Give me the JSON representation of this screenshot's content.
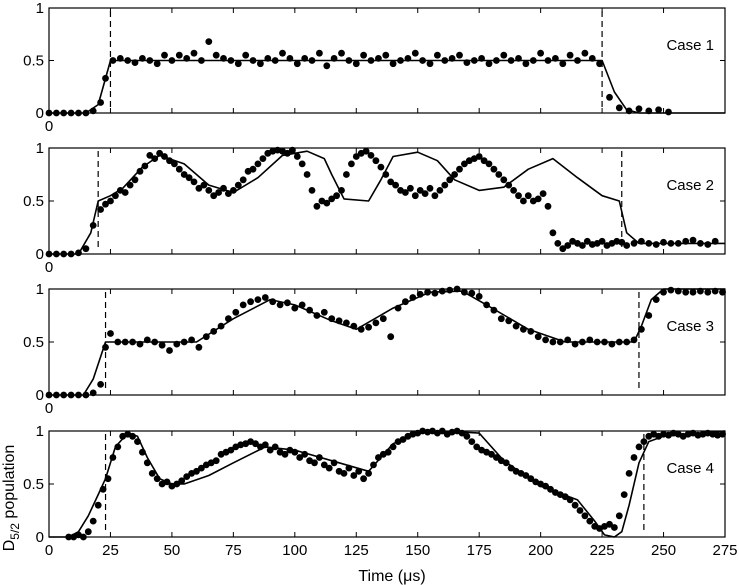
{
  "chart_data": [
    {
      "type": "scatter",
      "label": "Case 1",
      "xlim": [
        0,
        275
      ],
      "ylim": [
        0,
        1
      ],
      "yticks": [
        "0",
        "0.5",
        "1"
      ],
      "x_origin_label": "0",
      "transition_times": [
        25,
        225
      ],
      "fit_line": {
        "x": [
          0,
          15,
          20,
          25,
          225,
          230,
          235,
          240,
          275
        ],
        "y": [
          0,
          0,
          0.08,
          0.5,
          0.5,
          0.2,
          0.03,
          0,
          0
        ]
      },
      "points": {
        "x": [
          0,
          3,
          6,
          9,
          12,
          15,
          18,
          21,
          23,
          26,
          29,
          32,
          35,
          38,
          41,
          44,
          47,
          50,
          53,
          56,
          59,
          62,
          65,
          68,
          71,
          74,
          77,
          80,
          83,
          86,
          89,
          92,
          95,
          98,
          101,
          104,
          107,
          110,
          113,
          116,
          119,
          122,
          125,
          128,
          131,
          134,
          137,
          140,
          143,
          146,
          149,
          152,
          155,
          158,
          161,
          164,
          167,
          170,
          173,
          176,
          179,
          182,
          185,
          188,
          191,
          194,
          197,
          200,
          203,
          206,
          209,
          212,
          215,
          218,
          221,
          224,
          228,
          232,
          236,
          240,
          244,
          248,
          252
        ],
        "y": [
          0,
          0,
          0,
          0,
          0,
          0,
          0.02,
          0.1,
          0.33,
          0.5,
          0.52,
          0.5,
          0.48,
          0.52,
          0.5,
          0.47,
          0.55,
          0.5,
          0.55,
          0.52,
          0.57,
          0.5,
          0.68,
          0.55,
          0.52,
          0.5,
          0.47,
          0.55,
          0.5,
          0.47,
          0.52,
          0.5,
          0.57,
          0.52,
          0.47,
          0.52,
          0.5,
          0.57,
          0.45,
          0.52,
          0.57,
          0.5,
          0.47,
          0.55,
          0.5,
          0.52,
          0.55,
          0.47,
          0.5,
          0.52,
          0.57,
          0.5,
          0.47,
          0.55,
          0.5,
          0.52,
          0.55,
          0.48,
          0.5,
          0.52,
          0.47,
          0.5,
          0.55,
          0.5,
          0.52,
          0.47,
          0.5,
          0.57,
          0.5,
          0.52,
          0.47,
          0.55,
          0.5,
          0.57,
          0.52,
          0.47,
          0.15,
          0.05,
          0.02,
          0.04,
          0.02,
          0.03,
          0.01
        ]
      }
    },
    {
      "type": "scatter",
      "label": "Case 2",
      "xlim": [
        0,
        275
      ],
      "ylim": [
        0,
        1
      ],
      "yticks": [
        "0",
        "0.5",
        "1"
      ],
      "x_origin_label": "0",
      "transition_times": [
        20,
        233
      ],
      "fit_line": {
        "x": [
          0,
          12,
          17,
          20,
          25,
          30,
          38,
          45,
          55,
          65,
          75,
          85,
          95,
          105,
          112,
          115,
          120,
          130,
          135,
          140,
          150,
          158,
          165,
          175,
          185,
          195,
          205,
          215,
          225,
          232,
          235,
          240,
          275
        ],
        "y": [
          0,
          0,
          0.2,
          0.5,
          0.55,
          0.62,
          0.82,
          0.93,
          0.85,
          0.65,
          0.58,
          0.72,
          0.93,
          0.97,
          0.9,
          0.75,
          0.52,
          0.5,
          0.7,
          0.92,
          0.96,
          0.88,
          0.7,
          0.6,
          0.63,
          0.8,
          0.9,
          0.72,
          0.55,
          0.5,
          0.2,
          0.1,
          0.1
        ]
      },
      "points": {
        "x": [
          0,
          3,
          6,
          9,
          12,
          15,
          18,
          21,
          23,
          25,
          27,
          29,
          31,
          33,
          35,
          37,
          39,
          41,
          43,
          45,
          47,
          49,
          51,
          53,
          55,
          57,
          59,
          61,
          63,
          65,
          67,
          69,
          71,
          73,
          75,
          77,
          79,
          81,
          83,
          85,
          87,
          89,
          91,
          93,
          95,
          97,
          99,
          101,
          103,
          105,
          107,
          109,
          111,
          113,
          115,
          117,
          119,
          121,
          123,
          125,
          127,
          129,
          131,
          133,
          135,
          137,
          139,
          141,
          143,
          145,
          147,
          149,
          151,
          153,
          155,
          157,
          159,
          161,
          163,
          165,
          167,
          169,
          171,
          173,
          175,
          177,
          179,
          181,
          183,
          185,
          187,
          189,
          191,
          193,
          195,
          197,
          199,
          201,
          203,
          205,
          207,
          209,
          211,
          213,
          215,
          217,
          219,
          221,
          223,
          225,
          227,
          229,
          231,
          233,
          235,
          238,
          241,
          244,
          247,
          250,
          253,
          256,
          259,
          262,
          265,
          268,
          271
        ],
        "y": [
          0,
          0,
          0,
          0,
          0.01,
          0.05,
          0.27,
          0.42,
          0.47,
          0.5,
          0.55,
          0.6,
          0.58,
          0.65,
          0.7,
          0.78,
          0.83,
          0.93,
          0.9,
          0.95,
          0.92,
          0.88,
          0.85,
          0.8,
          0.75,
          0.72,
          0.68,
          0.62,
          0.65,
          0.6,
          0.55,
          0.58,
          0.62,
          0.57,
          0.6,
          0.65,
          0.7,
          0.78,
          0.8,
          0.85,
          0.9,
          0.95,
          0.97,
          0.98,
          0.97,
          0.95,
          0.98,
          0.92,
          0.85,
          0.75,
          0.6,
          0.45,
          0.5,
          0.48,
          0.52,
          0.55,
          0.6,
          0.75,
          0.85,
          0.92,
          0.95,
          0.97,
          0.93,
          0.88,
          0.82,
          0.75,
          0.68,
          0.65,
          0.6,
          0.58,
          0.62,
          0.55,
          0.6,
          0.57,
          0.62,
          0.55,
          0.6,
          0.65,
          0.7,
          0.75,
          0.8,
          0.85,
          0.88,
          0.9,
          0.92,
          0.88,
          0.85,
          0.8,
          0.75,
          0.7,
          0.65,
          0.6,
          0.55,
          0.5,
          0.55,
          0.5,
          0.52,
          0.57,
          0.45,
          0.2,
          0.1,
          0.05,
          0.08,
          0.12,
          0.1,
          0.08,
          0.12,
          0.09,
          0.1,
          0.12,
          0.08,
          0.1,
          0.12,
          0.11,
          0.08,
          0.1,
          0.12,
          0.1,
          0.09,
          0.11,
          0.1,
          0.1,
          0.12,
          0.13,
          0.1,
          0.09,
          0.12
        ]
      }
    },
    {
      "type": "scatter",
      "label": "Case 3",
      "xlim": [
        0,
        275
      ],
      "ylim": [
        0,
        1
      ],
      "yticks": [
        "0",
        "0.5",
        "1"
      ],
      "x_origin_label": "0",
      "transition_times": [
        23,
        240
      ],
      "fit_line": {
        "x": [
          0,
          14,
          18,
          23,
          28,
          60,
          75,
          90,
          100,
          115,
          125,
          140,
          155,
          168,
          178,
          195,
          210,
          225,
          238,
          241,
          245,
          250,
          275
        ],
        "y": [
          0,
          0,
          0.15,
          0.5,
          0.5,
          0.5,
          0.72,
          0.9,
          0.85,
          0.7,
          0.62,
          0.82,
          0.97,
          0.98,
          0.85,
          0.62,
          0.5,
          0.5,
          0.5,
          0.65,
          0.9,
          1,
          1
        ]
      },
      "points": {
        "x": [
          0,
          3,
          6,
          9,
          12,
          15,
          18,
          21,
          23,
          25,
          28,
          31,
          34,
          37,
          40,
          43,
          46,
          49,
          52,
          55,
          58,
          61,
          64,
          67,
          70,
          73,
          76,
          79,
          82,
          85,
          88,
          91,
          94,
          97,
          100,
          103,
          106,
          109,
          112,
          115,
          118,
          121,
          124,
          127,
          130,
          133,
          136,
          139,
          142,
          145,
          148,
          151,
          154,
          157,
          160,
          163,
          166,
          169,
          172,
          175,
          178,
          181,
          184,
          187,
          190,
          193,
          196,
          199,
          202,
          205,
          208,
          211,
          214,
          217,
          220,
          223,
          226,
          229,
          232,
          235,
          238,
          241,
          244,
          247,
          250,
          253,
          256,
          259,
          262,
          265,
          268,
          271,
          274
        ],
        "y": [
          0,
          0,
          0,
          0,
          0,
          0,
          0.02,
          0.1,
          0.45,
          0.58,
          0.5,
          0.5,
          0.5,
          0.48,
          0.52,
          0.5,
          0.47,
          0.42,
          0.48,
          0.5,
          0.52,
          0.45,
          0.55,
          0.6,
          0.65,
          0.72,
          0.78,
          0.85,
          0.88,
          0.9,
          0.92,
          0.88,
          0.85,
          0.87,
          0.82,
          0.85,
          0.8,
          0.75,
          0.78,
          0.72,
          0.7,
          0.68,
          0.65,
          0.62,
          0.64,
          0.68,
          0.72,
          0.55,
          0.82,
          0.88,
          0.92,
          0.95,
          0.97,
          0.96,
          0.98,
          0.99,
          1,
          0.97,
          0.96,
          0.93,
          0.85,
          0.8,
          0.72,
          0.7,
          0.65,
          0.62,
          0.6,
          0.55,
          0.52,
          0.5,
          0.5,
          0.52,
          0.48,
          0.5,
          0.52,
          0.5,
          0.5,
          0.48,
          0.5,
          0.5,
          0.52,
          0.62,
          0.75,
          0.9,
          0.97,
          0.99,
          0.98,
          0.97,
          0.97,
          0.98,
          0.97,
          0.98,
          0.97
        ]
      }
    },
    {
      "type": "scatter",
      "label": "Case 4",
      "xlim": [
        0,
        275
      ],
      "ylim": [
        0,
        1
      ],
      "yticks": [
        "0",
        "0.5",
        "1"
      ],
      "xticks": [
        "0",
        "25",
        "50",
        "75",
        "100",
        "125",
        "150",
        "175",
        "200",
        "225",
        "250",
        "275"
      ],
      "xlabel": "Time (μs)",
      "ylabel": "D5/2 population",
      "transition_times": [
        23,
        242
      ],
      "fit_line": {
        "x": [
          0,
          8,
          12,
          16,
          20,
          23,
          27,
          32,
          36,
          40,
          45,
          50,
          55,
          65,
          75,
          88,
          100,
          115,
          130,
          140,
          150,
          160,
          175,
          185,
          200,
          215,
          222,
          226,
          230,
          233,
          236,
          240,
          244,
          250,
          275
        ],
        "y": [
          0,
          0,
          0.05,
          0.2,
          0.4,
          0.55,
          0.85,
          0.98,
          0.95,
          0.75,
          0.55,
          0.5,
          0.5,
          0.58,
          0.7,
          0.85,
          0.82,
          0.72,
          0.62,
          0.88,
          0.98,
          1,
          0.98,
          0.72,
          0.48,
          0.35,
          0.15,
          0.02,
          0.0,
          0.05,
          0.3,
          0.7,
          0.9,
          0.95,
          1
        ]
      },
      "points": {
        "x": [
          8,
          10,
          12,
          14,
          16,
          18,
          20,
          22,
          24,
          26,
          28,
          30,
          32,
          34,
          36,
          38,
          40,
          42,
          44,
          46,
          48,
          50,
          52,
          54,
          56,
          58,
          60,
          62,
          64,
          66,
          68,
          70,
          72,
          74,
          76,
          78,
          80,
          82,
          84,
          86,
          88,
          90,
          92,
          94,
          96,
          98,
          100,
          102,
          104,
          106,
          108,
          110,
          112,
          114,
          116,
          118,
          120,
          122,
          124,
          126,
          128,
          130,
          132,
          134,
          136,
          138,
          140,
          142,
          144,
          146,
          148,
          150,
          152,
          154,
          156,
          158,
          160,
          162,
          164,
          166,
          168,
          170,
          172,
          174,
          176,
          178,
          180,
          182,
          184,
          186,
          188,
          190,
          192,
          194,
          196,
          198,
          200,
          202,
          204,
          206,
          208,
          210,
          212,
          214,
          216,
          218,
          220,
          222,
          224,
          226,
          228,
          230,
          232,
          234,
          236,
          238,
          240,
          242,
          244,
          246,
          248,
          250,
          252,
          254,
          256,
          258,
          260,
          262,
          264,
          266,
          268,
          270,
          272,
          274
        ],
        "y": [
          0,
          0,
          0.02,
          0,
          0.05,
          0.15,
          0.3,
          0.45,
          0.55,
          0.75,
          0.85,
          0.95,
          0.97,
          0.95,
          0.9,
          0.8,
          0.7,
          0.6,
          0.55,
          0.5,
          0.52,
          0.48,
          0.5,
          0.53,
          0.57,
          0.6,
          0.62,
          0.65,
          0.68,
          0.7,
          0.72,
          0.78,
          0.8,
          0.82,
          0.85,
          0.87,
          0.88,
          0.9,
          0.88,
          0.85,
          0.87,
          0.82,
          0.85,
          0.8,
          0.78,
          0.82,
          0.8,
          0.75,
          0.78,
          0.72,
          0.7,
          0.75,
          0.68,
          0.65,
          0.7,
          0.62,
          0.6,
          0.65,
          0.58,
          0.62,
          0.55,
          0.6,
          0.68,
          0.75,
          0.78,
          0.8,
          0.85,
          0.9,
          0.92,
          0.95,
          0.97,
          0.98,
          1,
          0.99,
          1,
          0.98,
          1,
          0.97,
          0.99,
          1,
          0.98,
          0.95,
          0.9,
          0.85,
          0.82,
          0.8,
          0.78,
          0.75,
          0.72,
          0.7,
          0.65,
          0.62,
          0.6,
          0.58,
          0.55,
          0.52,
          0.5,
          0.48,
          0.45,
          0.42,
          0.4,
          0.38,
          0.35,
          0.3,
          0.25,
          0.2,
          0.15,
          0.1,
          0.08,
          0.1,
          0.12,
          0.09,
          0.2,
          0.4,
          0.6,
          0.75,
          0.85,
          0.9,
          0.95,
          0.97,
          0.95,
          0.97,
          0.96,
          0.98,
          0.97,
          0.95,
          0.97,
          0.98,
          0.96,
          0.97,
          0.98,
          0.97,
          0.96,
          0.97
        ]
      }
    }
  ]
}
